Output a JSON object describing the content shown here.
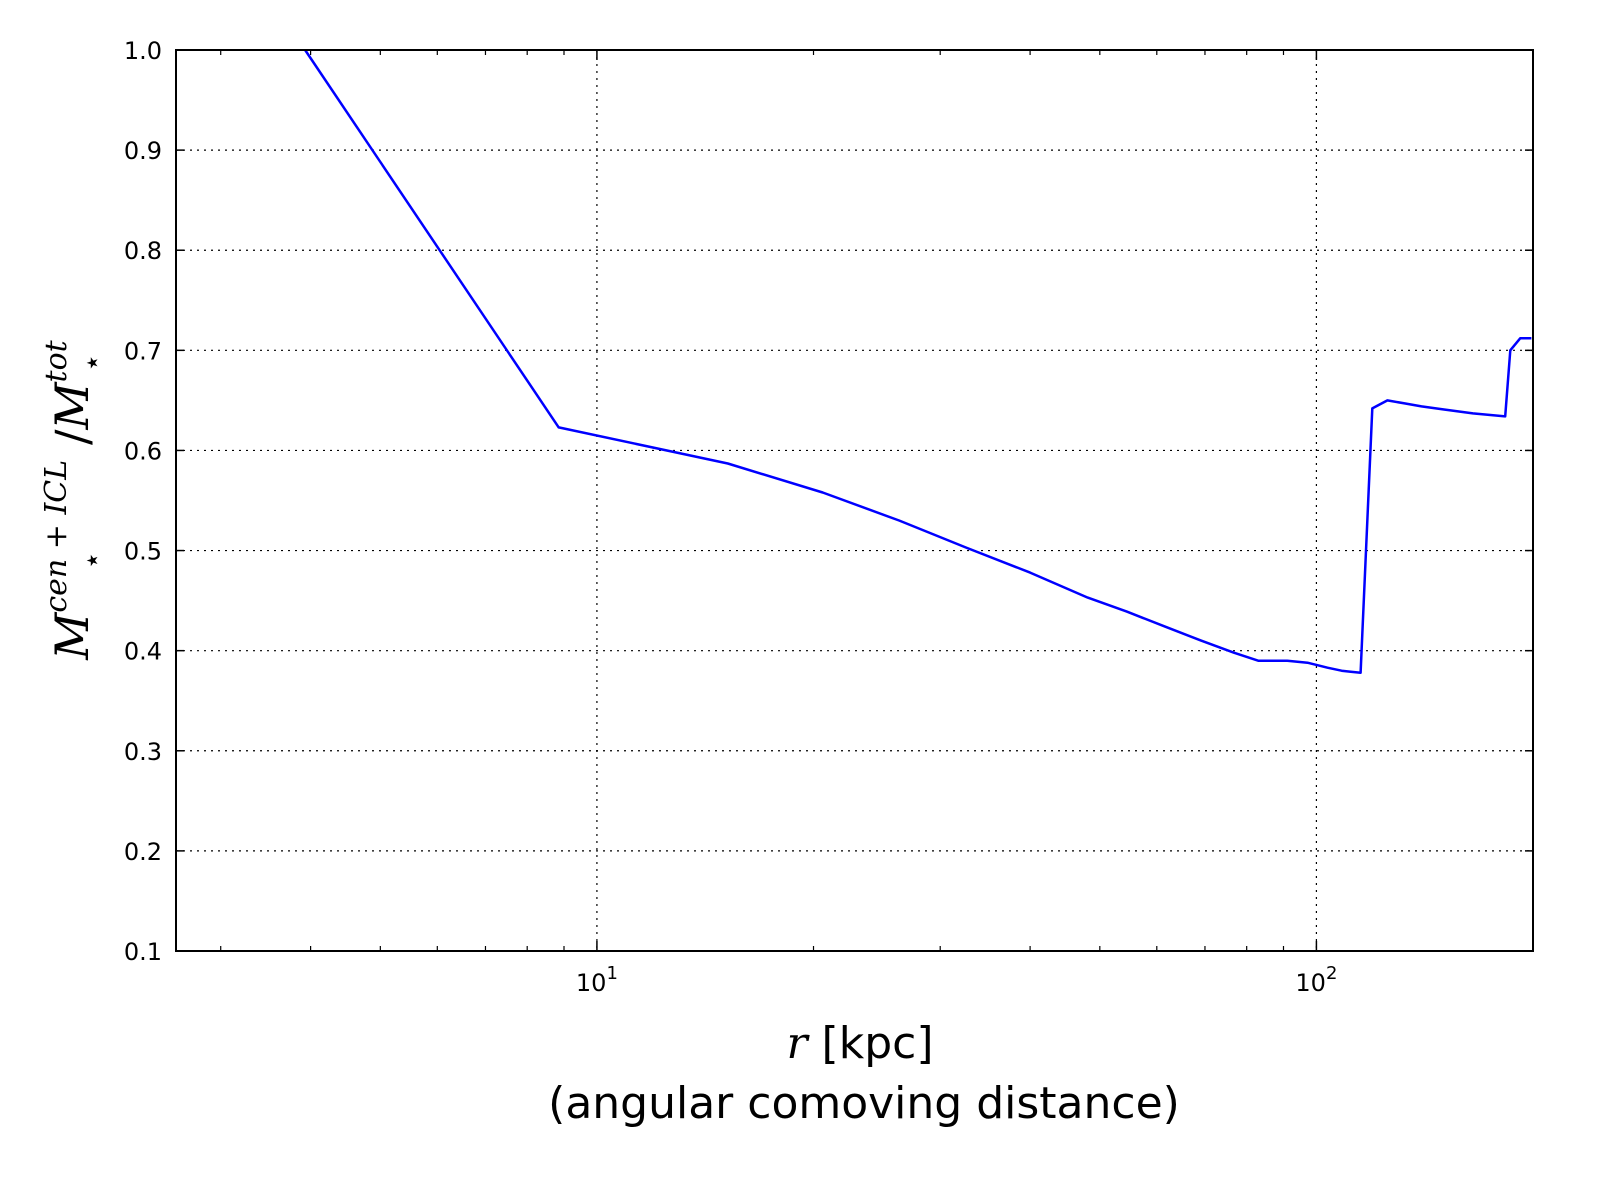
{
  "chart_data": {
    "type": "line",
    "xscale": "log",
    "xlim": [
      2.6,
      200
    ],
    "ylim": [
      0.1,
      1.0
    ],
    "grid": true,
    "grid_style": "dotted",
    "line_color": "#0000ff",
    "xlabel": {
      "variable": "r",
      "unit": " [kpc]",
      "subtitle": "(angular comoving distance)"
    },
    "ylabel": {
      "text": "M⋆^cen + ICL / M⋆^tot",
      "base": "M",
      "sup1": "cen + ICL",
      "sub1": "⋆",
      "slash": "/",
      "sup2": "tot",
      "sub2": "⋆"
    },
    "x_ticks": [
      {
        "value": 10,
        "base": "10",
        "exp": "1"
      },
      {
        "value": 100,
        "base": "10",
        "exp": "2"
      }
    ],
    "y_ticks": [
      0.1,
      0.2,
      0.3,
      0.4,
      0.5,
      0.6,
      0.7,
      0.8,
      0.9,
      1.0
    ],
    "y_tick_labels": [
      "0.1",
      "0.2",
      "0.3",
      "0.4",
      "0.5",
      "0.6",
      "0.7",
      "0.8",
      "0.9",
      "1.0"
    ],
    "series": [
      {
        "x": [
          3.93,
          8.85,
          15.2,
          20.6,
          26.3,
          32.6,
          40.0,
          48.1,
          54.5,
          61.6,
          69.2,
          76.8,
          83.0,
          91.1,
          97.2,
          103.6,
          108.4,
          111.6,
          115.2,
          119.6,
          125.5,
          132.6,
          140.0,
          150.0,
          165.0,
          183.0,
          186.0,
          192.0,
          199.0
        ],
        "y": [
          1.0,
          0.623,
          0.587,
          0.558,
          0.53,
          0.503,
          0.478,
          0.453,
          0.439,
          0.424,
          0.41,
          0.398,
          0.39,
          0.39,
          0.388,
          0.383,
          0.38,
          0.379,
          0.378,
          0.642,
          0.65,
          0.647,
          0.644,
          0.641,
          0.637,
          0.634,
          0.7,
          0.712,
          0.712
        ]
      }
    ]
  }
}
